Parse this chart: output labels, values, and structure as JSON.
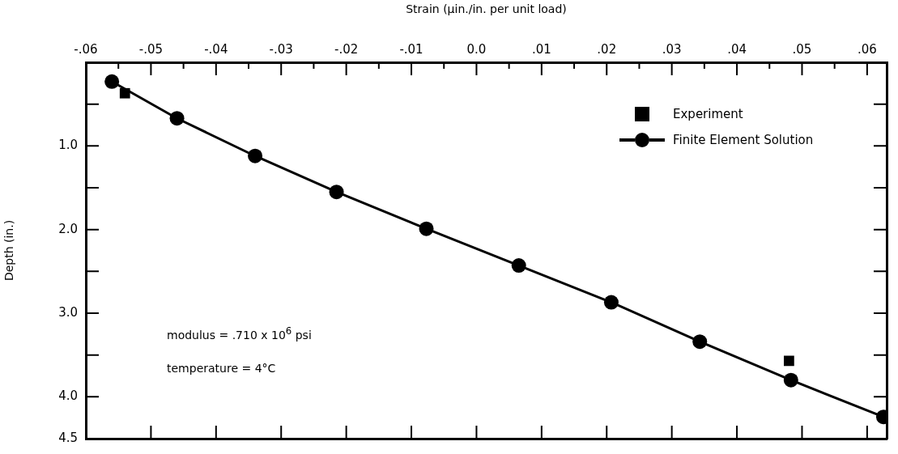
{
  "chart_data": {
    "type": "scatter",
    "xlabel": "Strain (µin./in. per unit load)",
    "ylabel": "Depth (in.)",
    "xlim": [
      -0.06,
      0.063
    ],
    "ylim": [
      4.5,
      0
    ],
    "xticks": [
      {
        "value": -0.06,
        "label": "-.06"
      },
      {
        "value": -0.055,
        "label": null
      },
      {
        "value": -0.05,
        "label": "-.05"
      },
      {
        "value": -0.045,
        "label": null
      },
      {
        "value": -0.04,
        "label": "-.04"
      },
      {
        "value": -0.035,
        "label": null
      },
      {
        "value": -0.03,
        "label": "-.03"
      },
      {
        "value": -0.025,
        "label": null
      },
      {
        "value": -0.02,
        "label": "-.02"
      },
      {
        "value": -0.015,
        "label": null
      },
      {
        "value": -0.01,
        "label": "-.01"
      },
      {
        "value": -0.005,
        "label": null
      },
      {
        "value": 0,
        "label": "0.0"
      },
      {
        "value": 0.005,
        "label": null
      },
      {
        "value": 0.01,
        "label": ".01"
      },
      {
        "value": 0.015,
        "label": null
      },
      {
        "value": 0.02,
        "label": ".02"
      },
      {
        "value": 0.025,
        "label": null
      },
      {
        "value": 0.03,
        "label": ".03"
      },
      {
        "value": 0.035,
        "label": null
      },
      {
        "value": 0.04,
        "label": ".04"
      },
      {
        "value": 0.045,
        "label": null
      },
      {
        "value": 0.05,
        "label": ".05"
      },
      {
        "value": 0.055,
        "label": null
      },
      {
        "value": 0.06,
        "label": ".06"
      }
    ],
    "yticks": [
      {
        "value": 0.5,
        "label": null
      },
      {
        "value": 1,
        "label": "1.0"
      },
      {
        "value": 1.5,
        "label": null
      },
      {
        "value": 2,
        "label": "2.0"
      },
      {
        "value": 2.5,
        "label": null
      },
      {
        "value": 3,
        "label": "3.0"
      },
      {
        "value": 3.5,
        "label": null
      },
      {
        "value": 4,
        "label": "4.0"
      },
      {
        "value": 4.5,
        "label": "4.5"
      }
    ],
    "grid": false,
    "legend": "top right",
    "line_style": "solid",
    "series": [
      {
        "name": "Experiment",
        "type": "scatter",
        "marker": "square",
        "color": "#000000",
        "x": [
          -0.054,
          0.048
        ],
        "values": [
          0.37,
          3.57
        ]
      },
      {
        "name": "Finite Element Solution",
        "type": "line",
        "marker": "circle",
        "color": "#000000",
        "x": [
          -0.056,
          -0.046,
          -0.034,
          -0.0215,
          -0.0077,
          0.0065,
          0.0207,
          0.0343,
          0.0483,
          0.0625
        ],
        "values": [
          0.23,
          0.67,
          1.12,
          1.55,
          1.99,
          2.43,
          2.87,
          3.34,
          3.8,
          4.24
        ]
      }
    ],
    "annotations": [
      "modulus = .710 x 10$^{6}$ psi",
      "temperature = 4°C"
    ]
  }
}
